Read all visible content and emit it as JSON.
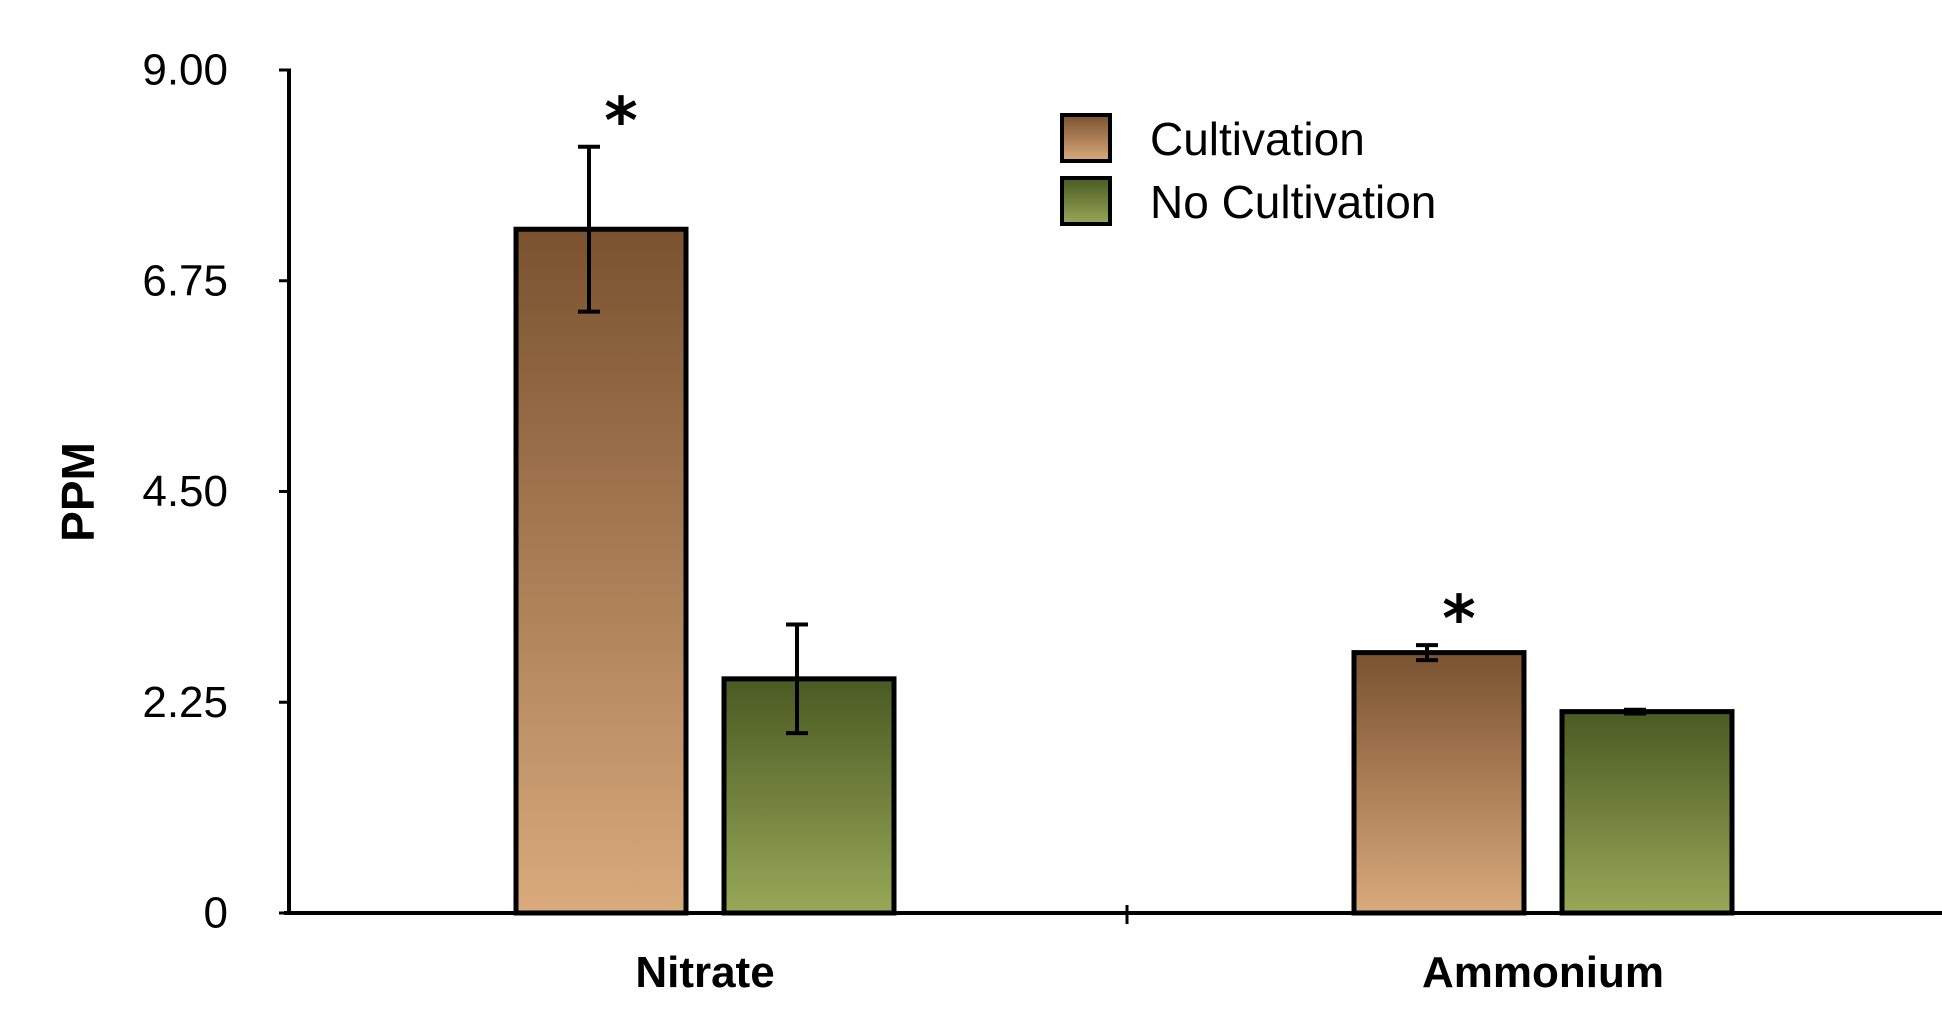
{
  "chart_data": {
    "type": "bar",
    "title": "",
    "xlabel": "",
    "ylabel": "PPM",
    "ylim": [
      0,
      9
    ],
    "yticks": [
      "0",
      "2.25",
      "4.50",
      "6.75",
      "9.00"
    ],
    "ytick_values": [
      0,
      2.25,
      4.5,
      6.75,
      9
    ],
    "categories": [
      "Nitrate",
      "Ammonium"
    ],
    "series": [
      {
        "name": "Cultivation",
        "values": [
          7.3,
          2.78
        ],
        "error": [
          0.88,
          0.08
        ],
        "significance": [
          "*",
          "*"
        ],
        "color_top": "#7a5230",
        "color_bottom": "#d9aa7c"
      },
      {
        "name": "No Cultivation",
        "values": [
          2.5,
          2.15
        ],
        "error": [
          0.58,
          0.02
        ],
        "significance": [
          "",
          ""
        ],
        "color_top": "#4a5a22",
        "color_bottom": "#98a858"
      }
    ],
    "grid": false,
    "legend_position": "top-right"
  }
}
